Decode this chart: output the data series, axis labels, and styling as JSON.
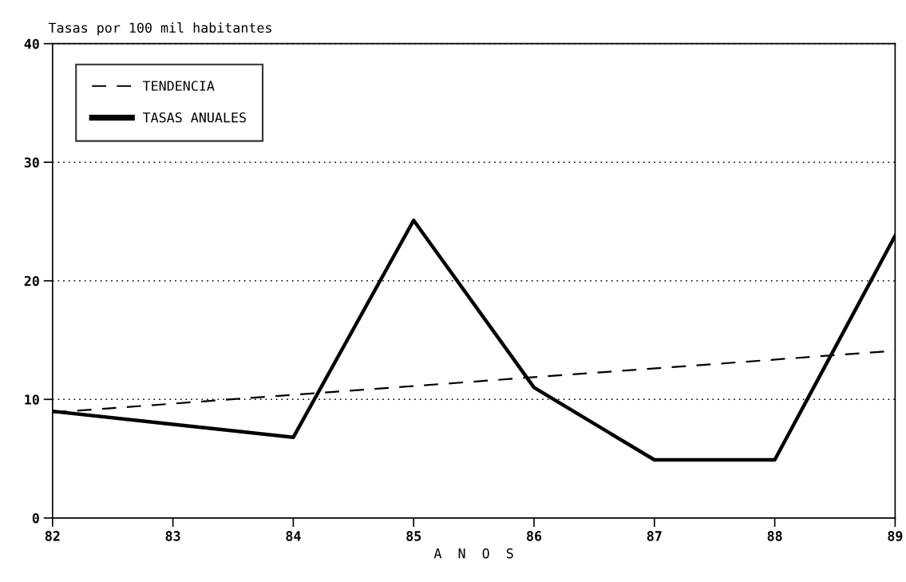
{
  "chart_data": {
    "type": "line",
    "title": "Tasas por 100 mil habitantes",
    "xlabel": "A  N  O  S",
    "x": [
      82,
      83,
      84,
      85,
      86,
      87,
      88,
      89
    ],
    "series": [
      {
        "name": "TENDENCIA",
        "color": "#000000",
        "x": [
          82,
          89
        ],
        "values": [
          8.9,
          14.1
        ],
        "line_style": "dashed"
      },
      {
        "name": "TASAS ANUALES",
        "color": "#000000",
        "values": [
          9.0,
          7.9,
          6.8,
          25.1,
          11.0,
          4.9,
          4.9,
          23.8
        ],
        "line_style": "solid"
      }
    ],
    "xlim": [
      82,
      89
    ],
    "xticks": [
      82,
      83,
      84,
      85,
      86,
      87,
      88,
      89
    ],
    "ylim": [
      0,
      40
    ],
    "yticks": [
      0,
      10,
      20,
      30,
      40
    ],
    "grid": "y",
    "legend": "top left",
    "marker": "none"
  }
}
